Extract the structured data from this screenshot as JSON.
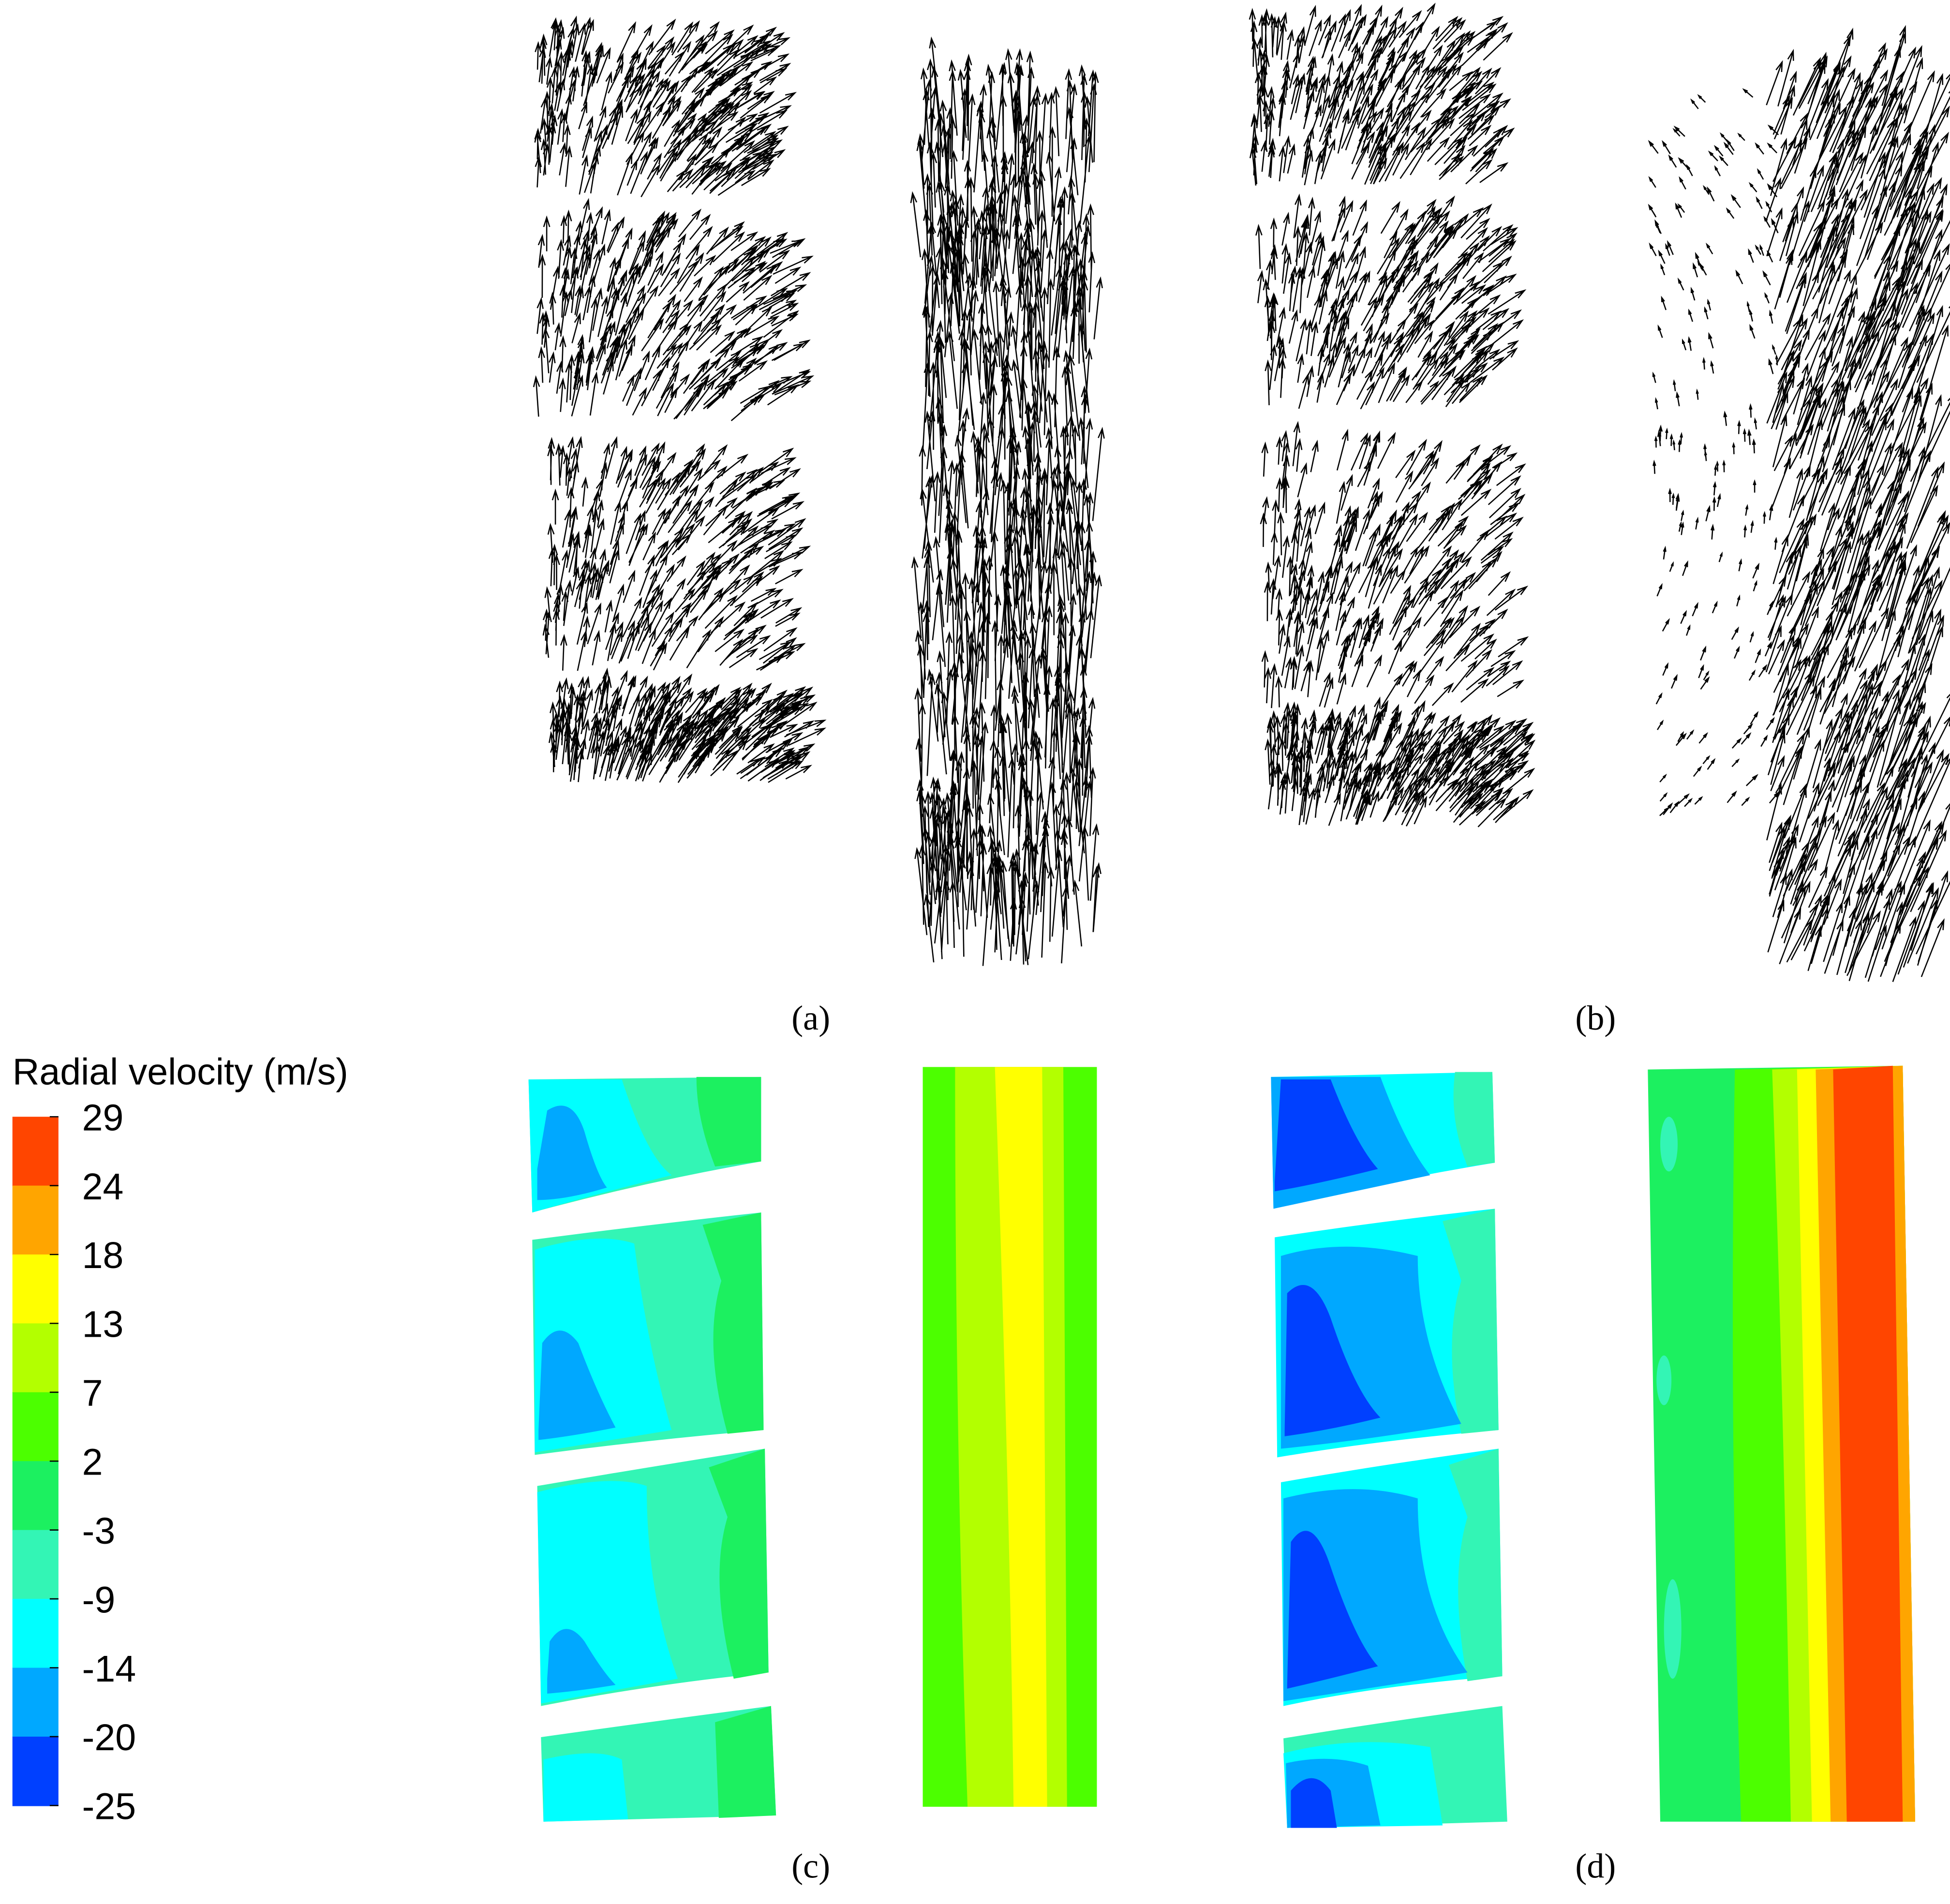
{
  "legend": {
    "title": "Radial velocity (m/s)",
    "ticks": [
      29,
      24,
      18,
      13,
      7,
      2,
      -3,
      -9,
      -14,
      -20,
      -25
    ],
    "colors": [
      "#ff4500",
      "#ffa500",
      "#ffff00",
      "#b3ff00",
      "#4cff00",
      "#1cf060",
      "#33f5b5",
      "#00ffff",
      "#00a8ff",
      "#0040ff"
    ]
  },
  "panels": [
    {
      "label": "(a)"
    },
    {
      "label": "(b)"
    },
    {
      "label": "(c)"
    },
    {
      "label": "(d)"
    }
  ]
}
